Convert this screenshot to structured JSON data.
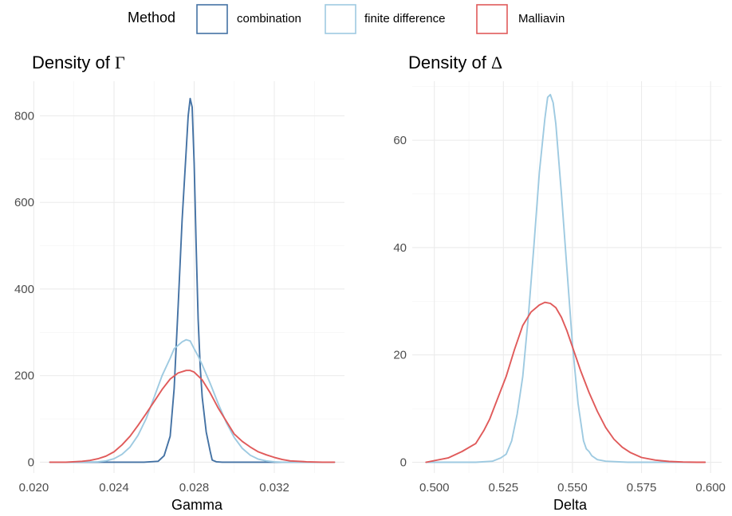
{
  "legend": {
    "title": "Method",
    "items": [
      {
        "label": "combination",
        "color": "#4472a4"
      },
      {
        "label": "finite difference",
        "color": "#9ecae1"
      },
      {
        "label": "Malliavin",
        "color": "#e05a5a"
      }
    ]
  },
  "chart_data": [
    {
      "type": "line",
      "title_prefix": "Density of ",
      "title_symbol": "Γ",
      "xlabel": "Gamma",
      "ylabel": "",
      "xlim": [
        0.0203,
        0.0355
      ],
      "ylim": [
        -25,
        880
      ],
      "xticks": [
        0.02,
        0.024,
        0.028,
        0.032
      ],
      "xtick_labels": [
        "0.020",
        "0.024",
        "0.028",
        "0.032"
      ],
      "yticks": [
        0,
        200,
        400,
        600,
        800
      ],
      "ytick_labels": [
        "0",
        "200",
        "400",
        "600",
        "800"
      ],
      "grid": true,
      "series": [
        {
          "name": "combination",
          "color": "#4472a4",
          "x": [
            0.0208,
            0.0255,
            0.0262,
            0.0265,
            0.0268,
            0.027,
            0.0272,
            0.0274,
            0.0276,
            0.0277,
            0.0278,
            0.0279,
            0.028,
            0.0281,
            0.0282,
            0.0283,
            0.0284,
            0.0286,
            0.0288,
            0.0289,
            0.0291,
            0.0294,
            0.035
          ],
          "y": [
            0,
            0,
            2,
            15,
            60,
            170,
            360,
            560,
            720,
            800,
            840,
            820,
            690,
            500,
            330,
            220,
            150,
            70,
            25,
            5,
            1,
            0,
            0
          ]
        },
        {
          "name": "finite difference",
          "color": "#9ecae1",
          "x": [
            0.0208,
            0.022,
            0.0232,
            0.0236,
            0.024,
            0.0244,
            0.0248,
            0.0252,
            0.0256,
            0.026,
            0.0264,
            0.0268,
            0.027,
            0.0274,
            0.0276,
            0.0278,
            0.028,
            0.0282,
            0.0284,
            0.0288,
            0.0292,
            0.0296,
            0.03,
            0.0304,
            0.0308,
            0.0312,
            0.0316,
            0.032,
            0.0324,
            0.033,
            0.034,
            0.035
          ],
          "y": [
            0,
            0,
            1,
            3,
            8,
            18,
            35,
            62,
            100,
            150,
            200,
            240,
            262,
            278,
            283,
            280,
            262,
            245,
            225,
            182,
            135,
            92,
            57,
            32,
            16,
            7,
            3,
            1,
            0,
            0,
            0,
            0
          ]
        },
        {
          "name": "Malliavin",
          "color": "#e05a5a",
          "x": [
            0.0208,
            0.0216,
            0.0224,
            0.0228,
            0.0232,
            0.0236,
            0.024,
            0.0244,
            0.0248,
            0.0252,
            0.0256,
            0.026,
            0.0264,
            0.0268,
            0.0272,
            0.0276,
            0.0278,
            0.028,
            0.0284,
            0.0288,
            0.0292,
            0.0296,
            0.03,
            0.0304,
            0.0308,
            0.0312,
            0.0316,
            0.032,
            0.0324,
            0.0328,
            0.0332,
            0.0336,
            0.0344,
            0.035
          ],
          "y": [
            0,
            0,
            2,
            4,
            8,
            14,
            24,
            40,
            60,
            85,
            112,
            140,
            168,
            192,
            206,
            212,
            212,
            208,
            190,
            160,
            125,
            95,
            65,
            48,
            35,
            24,
            17,
            11,
            6,
            3,
            2,
            1,
            0,
            0
          ]
        }
      ]
    },
    {
      "type": "line",
      "title_prefix": "Density of ",
      "title_symbol": "Δ",
      "xlabel": "Delta",
      "ylabel": "",
      "xlim": [
        0.492,
        0.604
      ],
      "ylim": [
        -2,
        71
      ],
      "xticks": [
        0.5,
        0.525,
        0.55,
        0.575,
        0.6
      ],
      "xtick_labels": [
        "0.500",
        "0.525",
        "0.550",
        "0.575",
        "0.600"
      ],
      "yticks": [
        0,
        20,
        40,
        60
      ],
      "ytick_labels": [
        "0",
        "20",
        "40",
        "60"
      ],
      "grid": true,
      "series": [
        {
          "name": "finite difference",
          "color": "#9ecae1",
          "x": [
            0.497,
            0.515,
            0.521,
            0.524,
            0.526,
            0.528,
            0.53,
            0.532,
            0.534,
            0.536,
            0.538,
            0.54,
            0.541,
            0.542,
            0.543,
            0.544,
            0.546,
            0.548,
            0.55,
            0.552,
            0.554,
            0.555,
            0.556,
            0.557,
            0.559,
            0.562,
            0.57,
            0.598
          ],
          "y": [
            0,
            0,
            0.2,
            0.8,
            1.5,
            4,
            9,
            16,
            27,
            40,
            54,
            64,
            68,
            68.5,
            67,
            63,
            50,
            36,
            22,
            11,
            4,
            2.5,
            2,
            1.2,
            0.5,
            0.2,
            0,
            0
          ]
        },
        {
          "name": "Malliavin",
          "color": "#e05a5a",
          "x": [
            0.497,
            0.505,
            0.51,
            0.515,
            0.518,
            0.52,
            0.523,
            0.526,
            0.529,
            0.532,
            0.535,
            0.538,
            0.54,
            0.542,
            0.544,
            0.546,
            0.548,
            0.55,
            0.553,
            0.556,
            0.559,
            0.562,
            0.565,
            0.568,
            0.571,
            0.575,
            0.58,
            0.585,
            0.59,
            0.595,
            0.598
          ],
          "y": [
            0,
            0.8,
            2,
            3.5,
            6,
            8,
            12,
            16,
            21,
            25.5,
            28,
            29.3,
            29.8,
            29.6,
            28.8,
            27,
            24.5,
            21.5,
            17,
            13,
            9.5,
            6.5,
            4.3,
            2.8,
            1.8,
            0.9,
            0.4,
            0.15,
            0.05,
            0,
            0
          ]
        }
      ]
    }
  ]
}
